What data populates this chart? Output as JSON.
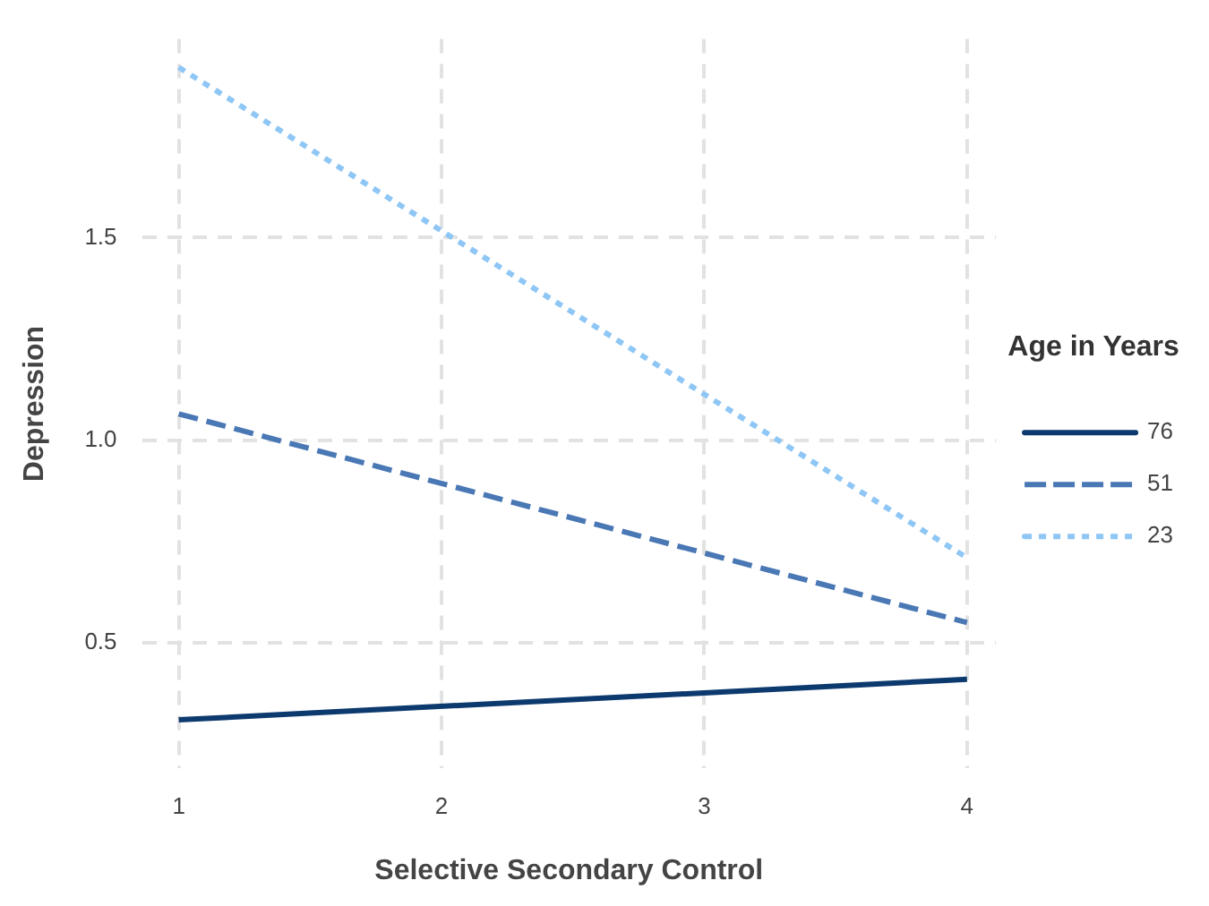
{
  "chart_data": {
    "type": "line",
    "xlabel": "Selective Secondary Control",
    "ylabel": "Depression",
    "legend_title": "Age in Years",
    "x": [
      1,
      4
    ],
    "series": [
      {
        "name": "76",
        "color": "#0d3a6e",
        "values": [
          0.31,
          0.41
        ],
        "line_style": "solid"
      },
      {
        "name": "51",
        "color": "#4a78b5",
        "values": [
          1.065,
          0.55
        ],
        "line_style": "dashed"
      },
      {
        "name": "23",
        "color": "#8ec6f5",
        "values": [
          1.92,
          0.71
        ],
        "line_style": "dotted"
      }
    ],
    "xlim": [
      0.86,
      4.11
    ],
    "xticks": [
      1,
      2,
      3,
      4
    ],
    "ylim": [
      0.19,
      1.99
    ],
    "yticks": [
      {
        "value": 0.5,
        "label": "0.5"
      },
      {
        "value": 1,
        "label": "1.0"
      },
      {
        "value": 1.5,
        "label": "1.5"
      }
    ],
    "grid": true,
    "legend": "right",
    "marker": "none"
  }
}
